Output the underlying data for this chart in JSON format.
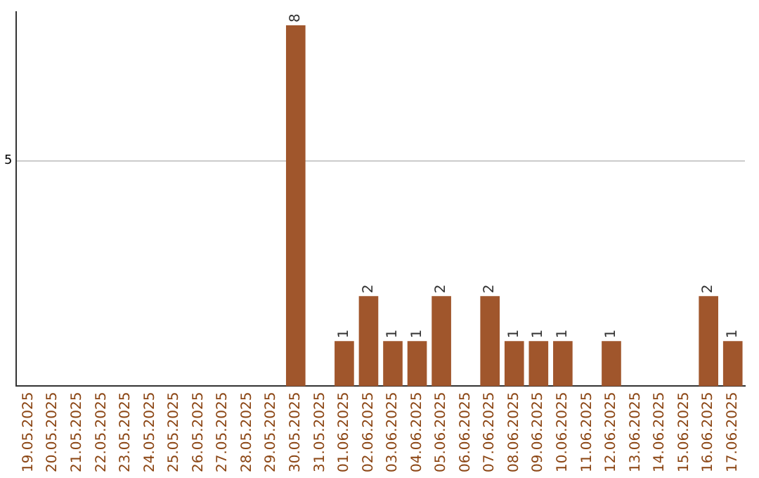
{
  "chart_data": {
    "type": "bar",
    "categories": [
      "19.05.2025",
      "20.05.2025",
      "21.05.2025",
      "22.05.2025",
      "23.05.2025",
      "24.05.2025",
      "25.05.2025",
      "26.05.2025",
      "27.05.2025",
      "28.05.2025",
      "29.05.2025",
      "30.05.2025",
      "31.05.2025",
      "01.06.2025",
      "02.06.2025",
      "03.06.2025",
      "04.06.2025",
      "05.06.2025",
      "06.06.2025",
      "07.06.2025",
      "08.06.2025",
      "09.06.2025",
      "10.06.2025",
      "11.06.2025",
      "12.06.2025",
      "13.06.2025",
      "14.06.2025",
      "15.06.2025",
      "16.06.2025",
      "17.06.2025"
    ],
    "values": [
      null,
      null,
      null,
      null,
      null,
      null,
      null,
      null,
      null,
      null,
      null,
      8,
      null,
      1,
      2,
      1,
      1,
      2,
      null,
      2,
      1,
      1,
      1,
      null,
      1,
      null,
      null,
      null,
      2,
      1
    ],
    "color": "#a0562c",
    "ylim": [
      0,
      8.3
    ],
    "yticks": [
      5
    ],
    "grid": "y",
    "data_labels": true,
    "legend": false
  }
}
